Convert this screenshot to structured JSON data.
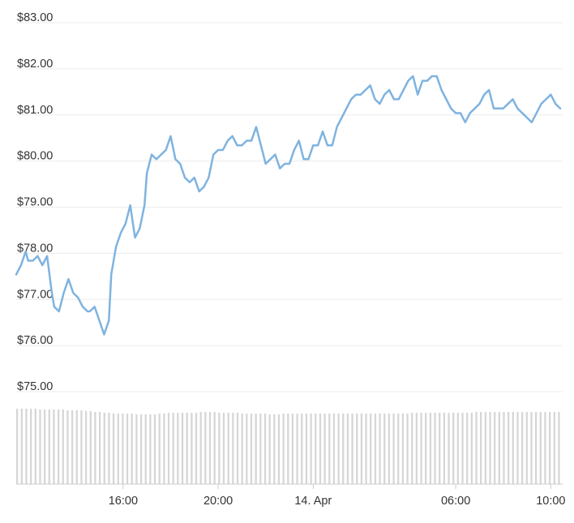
{
  "chart_data": {
    "type": "line",
    "title": "",
    "xlabel": "",
    "ylabel": "",
    "y_tick_labels": [
      "$83.00",
      "$82.00",
      "$81.00",
      "$80.00",
      "$79.00",
      "$78.00",
      "$77.00",
      "$76.00",
      "$75.00"
    ],
    "y_tick_values": [
      83,
      82,
      81,
      80,
      79,
      78,
      77,
      76,
      75
    ],
    "ylim": [
      75,
      83
    ],
    "x_tick_labels": [
      "16:00",
      "20:00",
      "14. Apr",
      "06:00",
      "10:00"
    ],
    "x_tick_hours": [
      16,
      20,
      24,
      30,
      34
    ],
    "xlim_hours": [
      11.5,
      34.5
    ],
    "grid": true,
    "legend": "none",
    "line_color": "#7fb3e0",
    "volume_color": "#d6d6d6",
    "series": [
      {
        "values_x_hours": [
          11.5,
          11.7,
          11.9,
          12.0,
          12.2,
          12.4,
          12.6,
          12.8,
          13.0,
          13.1,
          13.3,
          13.5,
          13.7,
          13.9,
          14.1,
          14.3,
          14.5,
          14.6,
          14.8,
          15.0,
          15.2,
          15.4,
          15.5,
          15.7,
          15.9,
          16.0,
          16.1,
          16.3,
          16.5,
          16.7,
          16.9,
          17.0,
          17.2,
          17.4,
          17.6,
          17.8,
          18.0,
          18.2,
          18.4,
          18.6,
          18.8,
          19.0,
          19.2,
          19.4,
          19.6,
          19.8,
          20.0,
          20.2,
          20.4,
          20.6,
          20.8,
          21.0,
          21.2,
          21.4,
          21.6,
          21.8,
          22.0,
          22.2,
          22.4,
          22.6,
          22.8,
          23.0,
          23.2,
          23.4,
          23.6,
          23.8,
          24.0,
          24.2,
          24.4,
          24.6,
          24.8,
          25.0,
          25.2,
          25.4,
          25.6,
          25.8,
          26.0,
          26.2,
          26.4,
          26.6,
          26.8,
          27.0,
          27.2,
          27.4,
          27.6,
          27.8,
          28.0,
          28.2,
          28.4,
          28.6,
          28.8,
          29.0,
          29.2,
          29.4,
          29.6,
          29.8,
          30.0,
          30.2,
          30.4,
          30.6,
          30.8,
          31.0,
          31.2,
          31.4,
          31.6,
          31.8,
          32.0,
          32.2,
          32.4,
          32.6,
          32.8,
          33.0,
          33.2,
          33.4,
          33.6,
          33.8,
          34.0,
          34.2,
          34.4
        ],
        "values_y": [
          77.4,
          77.6,
          77.9,
          77.7,
          77.7,
          77.8,
          77.6,
          77.8,
          77.0,
          76.7,
          76.6,
          77.0,
          77.3,
          77.0,
          76.9,
          76.7,
          76.6,
          76.6,
          76.7,
          76.4,
          76.1,
          76.4,
          77.4,
          78.0,
          78.3,
          78.4,
          78.5,
          78.9,
          78.2,
          78.4,
          78.9,
          79.6,
          80.0,
          79.9,
          80.0,
          80.1,
          80.4,
          79.9,
          79.8,
          79.5,
          79.4,
          79.5,
          79.2,
          79.3,
          79.5,
          80.0,
          80.1,
          80.1,
          80.3,
          80.4,
          80.2,
          80.2,
          80.3,
          80.3,
          80.6,
          80.2,
          79.8,
          79.9,
          80.0,
          79.7,
          79.8,
          79.8,
          80.1,
          80.3,
          79.9,
          79.9,
          80.2,
          80.2,
          80.5,
          80.2,
          80.2,
          80.6,
          80.8,
          81.0,
          81.2,
          81.3,
          81.3,
          81.4,
          81.5,
          81.2,
          81.1,
          81.3,
          81.4,
          81.2,
          81.2,
          81.4,
          81.6,
          81.7,
          81.3,
          81.6,
          81.6,
          81.7,
          81.7,
          81.4,
          81.2,
          81.0,
          80.9,
          80.9,
          80.7,
          80.9,
          81.0,
          81.1,
          81.3,
          81.4,
          81.0,
          81.0,
          81.0,
          81.1,
          81.2,
          81.0,
          80.9,
          80.8,
          80.7,
          80.9,
          81.1,
          81.2,
          81.3,
          81.1,
          81.0
        ],
        "volume_relative": [
          0.93,
          0.93,
          0.93,
          0.93,
          0.93,
          0.92,
          0.92,
          0.92,
          0.92,
          0.92,
          0.92,
          0.91,
          0.91,
          0.91,
          0.91,
          0.9,
          0.9,
          0.89,
          0.89,
          0.88,
          0.88,
          0.87,
          0.87,
          0.87,
          0.87,
          0.87,
          0.86,
          0.86,
          0.86,
          0.86,
          0.86,
          0.87,
          0.87,
          0.88,
          0.88,
          0.88,
          0.88,
          0.88,
          0.88,
          0.88,
          0.89,
          0.89,
          0.89,
          0.89,
          0.88,
          0.88,
          0.88,
          0.88,
          0.88,
          0.87,
          0.87,
          0.87,
          0.87,
          0.87,
          0.87,
          0.86,
          0.86,
          0.86,
          0.87,
          0.87,
          0.87,
          0.87,
          0.87,
          0.87,
          0.87,
          0.87,
          0.87,
          0.87,
          0.87,
          0.87,
          0.87,
          0.87,
          0.87,
          0.87,
          0.87,
          0.87,
          0.87,
          0.87,
          0.87,
          0.87,
          0.87,
          0.87,
          0.87,
          0.87,
          0.87,
          0.87,
          0.88,
          0.88,
          0.88,
          0.88,
          0.88,
          0.88,
          0.88,
          0.88,
          0.88,
          0.88,
          0.88,
          0.88,
          0.88,
          0.88,
          0.89,
          0.89,
          0.89,
          0.89,
          0.89,
          0.89,
          0.89,
          0.89,
          0.89,
          0.89,
          0.89,
          0.89,
          0.89,
          0.89,
          0.89,
          0.89,
          0.89,
          0.89,
          0.89
        ]
      }
    ]
  }
}
